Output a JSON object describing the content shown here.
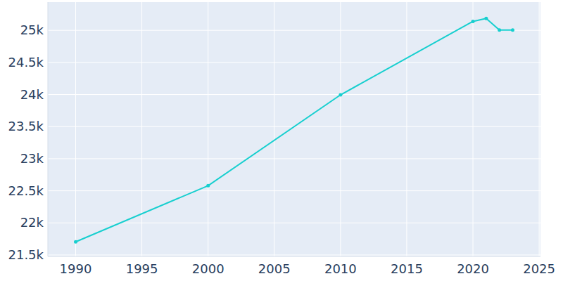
{
  "chart_data": {
    "type": "line",
    "x": [
      1990,
      2000,
      2010,
      2020,
      2021,
      2022,
      2023
    ],
    "values": [
      21705,
      22580,
      23995,
      25140,
      25185,
      25005,
      25005
    ],
    "color": "#17cfcf",
    "marker": "circle",
    "xlim": [
      1987.9,
      2025.1
    ],
    "xticks": [
      1990,
      1995,
      2000,
      2005,
      2010,
      2015,
      2020,
      2025
    ],
    "ylim": [
      21478,
      25440
    ],
    "yticks": [
      {
        "value": 21500,
        "label": "21.5k"
      },
      {
        "value": 22000,
        "label": "22k"
      },
      {
        "value": 22500,
        "label": "22.5k"
      },
      {
        "value": 23000,
        "label": "23k"
      },
      {
        "value": 23500,
        "label": "23.5k"
      },
      {
        "value": 24000,
        "label": "24k"
      },
      {
        "value": 24500,
        "label": "24.5k"
      },
      {
        "value": 25000,
        "label": "25k"
      }
    ],
    "grid": true
  }
}
